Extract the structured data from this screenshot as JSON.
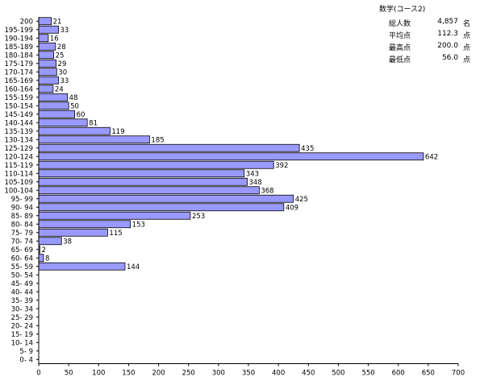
{
  "chart_data": {
    "type": "bar",
    "orientation": "horizontal",
    "title": "数学(コース2)",
    "categories": [
      "200",
      "195-199",
      "190-194",
      "185-189",
      "180-184",
      "175-179",
      "170-174",
      "165-169",
      "160-164",
      "155-159",
      "150-154",
      "145-149",
      "140-144",
      "135-139",
      "130-134",
      "125-129",
      "120-124",
      "115-119",
      "110-114",
      "105-109",
      "100-104",
      "95- 99",
      "90- 94",
      "85- 89",
      "80- 84",
      "75- 79",
      "70- 74",
      "65- 69",
      "60- 64",
      "55- 59",
      "50- 54",
      "45- 49",
      "40- 44",
      "35- 39",
      "30- 34",
      "25- 29",
      "20- 24",
      "15- 19",
      "10- 14",
      "5- 9",
      "0- 4"
    ],
    "values": [
      21,
      33,
      16,
      28,
      25,
      29,
      30,
      33,
      24,
      48,
      50,
      60,
      81,
      119,
      185,
      435,
      642,
      392,
      343,
      348,
      368,
      425,
      409,
      253,
      153,
      115,
      38,
      2,
      8,
      144,
      null,
      null,
      null,
      null,
      null,
      null,
      null,
      null,
      null,
      null,
      null
    ],
    "value_labels": [
      "21",
      "33",
      "16",
      "28",
      "25",
      "29",
      "30",
      "33",
      "24",
      "48",
      "50",
      "60",
      "81",
      "119",
      "185",
      "435",
      "642",
      "392",
      "343",
      "348",
      "368",
      "425",
      "409",
      "253",
      "153",
      "115",
      "38",
      "2",
      "8",
      "144",
      "",
      "",
      "",
      "",
      "",
      "",
      "",
      "",
      "",
      "",
      ""
    ],
    "xlim": [
      0,
      700
    ],
    "xticks": [
      "0",
      "50",
      "100",
      "150",
      "200",
      "250",
      "300",
      "350",
      "400",
      "450",
      "500",
      "550",
      "600",
      "650",
      "700"
    ],
    "grid": false,
    "bar_color": "#9999ff"
  },
  "stats": {
    "title": "数学(コース2)",
    "rows": [
      {
        "label": "総人数",
        "value": "4,857",
        "unit": "名"
      },
      {
        "label": "平均点",
        "value": "112.3",
        "unit": "点"
      },
      {
        "label": "最高点",
        "value": "200.0",
        "unit": "点"
      },
      {
        "label": "最低点",
        "value": "56.0",
        "unit": "点"
      }
    ]
  }
}
